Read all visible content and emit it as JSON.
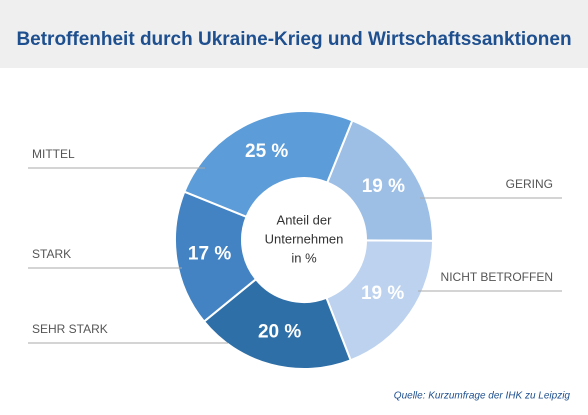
{
  "chart_data": {
    "type": "donut",
    "title": "Betroffenheit durch Ukraine-Krieg und Wirtschaftssanktionen",
    "center_label": [
      "Anteil der",
      "Unternehmen",
      "in %"
    ],
    "categories": [
      "GERING",
      "NICHT BETROFFEN",
      "SEHR STARK",
      "STARK",
      "MITTEL"
    ],
    "values": [
      19,
      19,
      20,
      17,
      25
    ],
    "value_labels": [
      "19 %",
      "19 %",
      "20 %",
      "17 %",
      "25 %"
    ],
    "colors": [
      "#9dbfe6",
      "#bcd2ef",
      "#2f6fa8",
      "#4383c3",
      "#5b9cd9"
    ],
    "source": "Quelle: Kurzumfrage der IHK zu Leipzig"
  }
}
